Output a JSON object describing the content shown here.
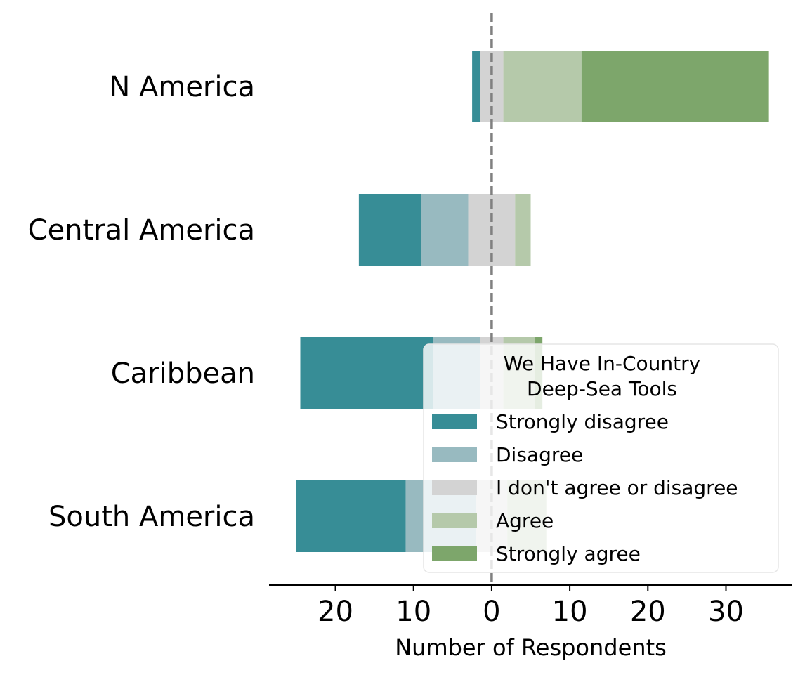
{
  "chart_data": {
    "type": "bar",
    "orientation": "horizontal",
    "stacking": "diverging",
    "categories": [
      "N America",
      "Central America",
      "Caribbean",
      "South America"
    ],
    "series": [
      {
        "name": "Strongly disagree",
        "values": [
          1,
          8,
          17,
          14
        ],
        "color": "#378d96"
      },
      {
        "name": "Disagree",
        "values": [
          0,
          6,
          6,
          9
        ],
        "color": "#98bac0"
      },
      {
        "name": "I don't agree or disagree",
        "values": [
          3,
          6,
          3,
          4
        ],
        "color": "#d3d3d3"
      },
      {
        "name": "Agree",
        "values": [
          10,
          2,
          4,
          5
        ],
        "color": "#b5c9aa"
      },
      {
        "name": "Strongly agree",
        "values": [
          24,
          0,
          1,
          0
        ],
        "color": "#7da66b"
      }
    ],
    "neutral_series": "I don't agree or disagree",
    "xlim": [
      -28.5,
      38.5
    ],
    "xticks": [
      -20,
      -10,
      0,
      10,
      20,
      30
    ],
    "xtick_labels": [
      "20",
      "10",
      "0",
      "10",
      "20",
      "30"
    ],
    "xlabel": "Number of Respondents",
    "ylabel": "",
    "zero_line": {
      "style": "dashed",
      "color": "#808080"
    },
    "legend": {
      "title": "We Have In-Country\nDeep-Sea Tools",
      "placement": "lower right"
    }
  }
}
